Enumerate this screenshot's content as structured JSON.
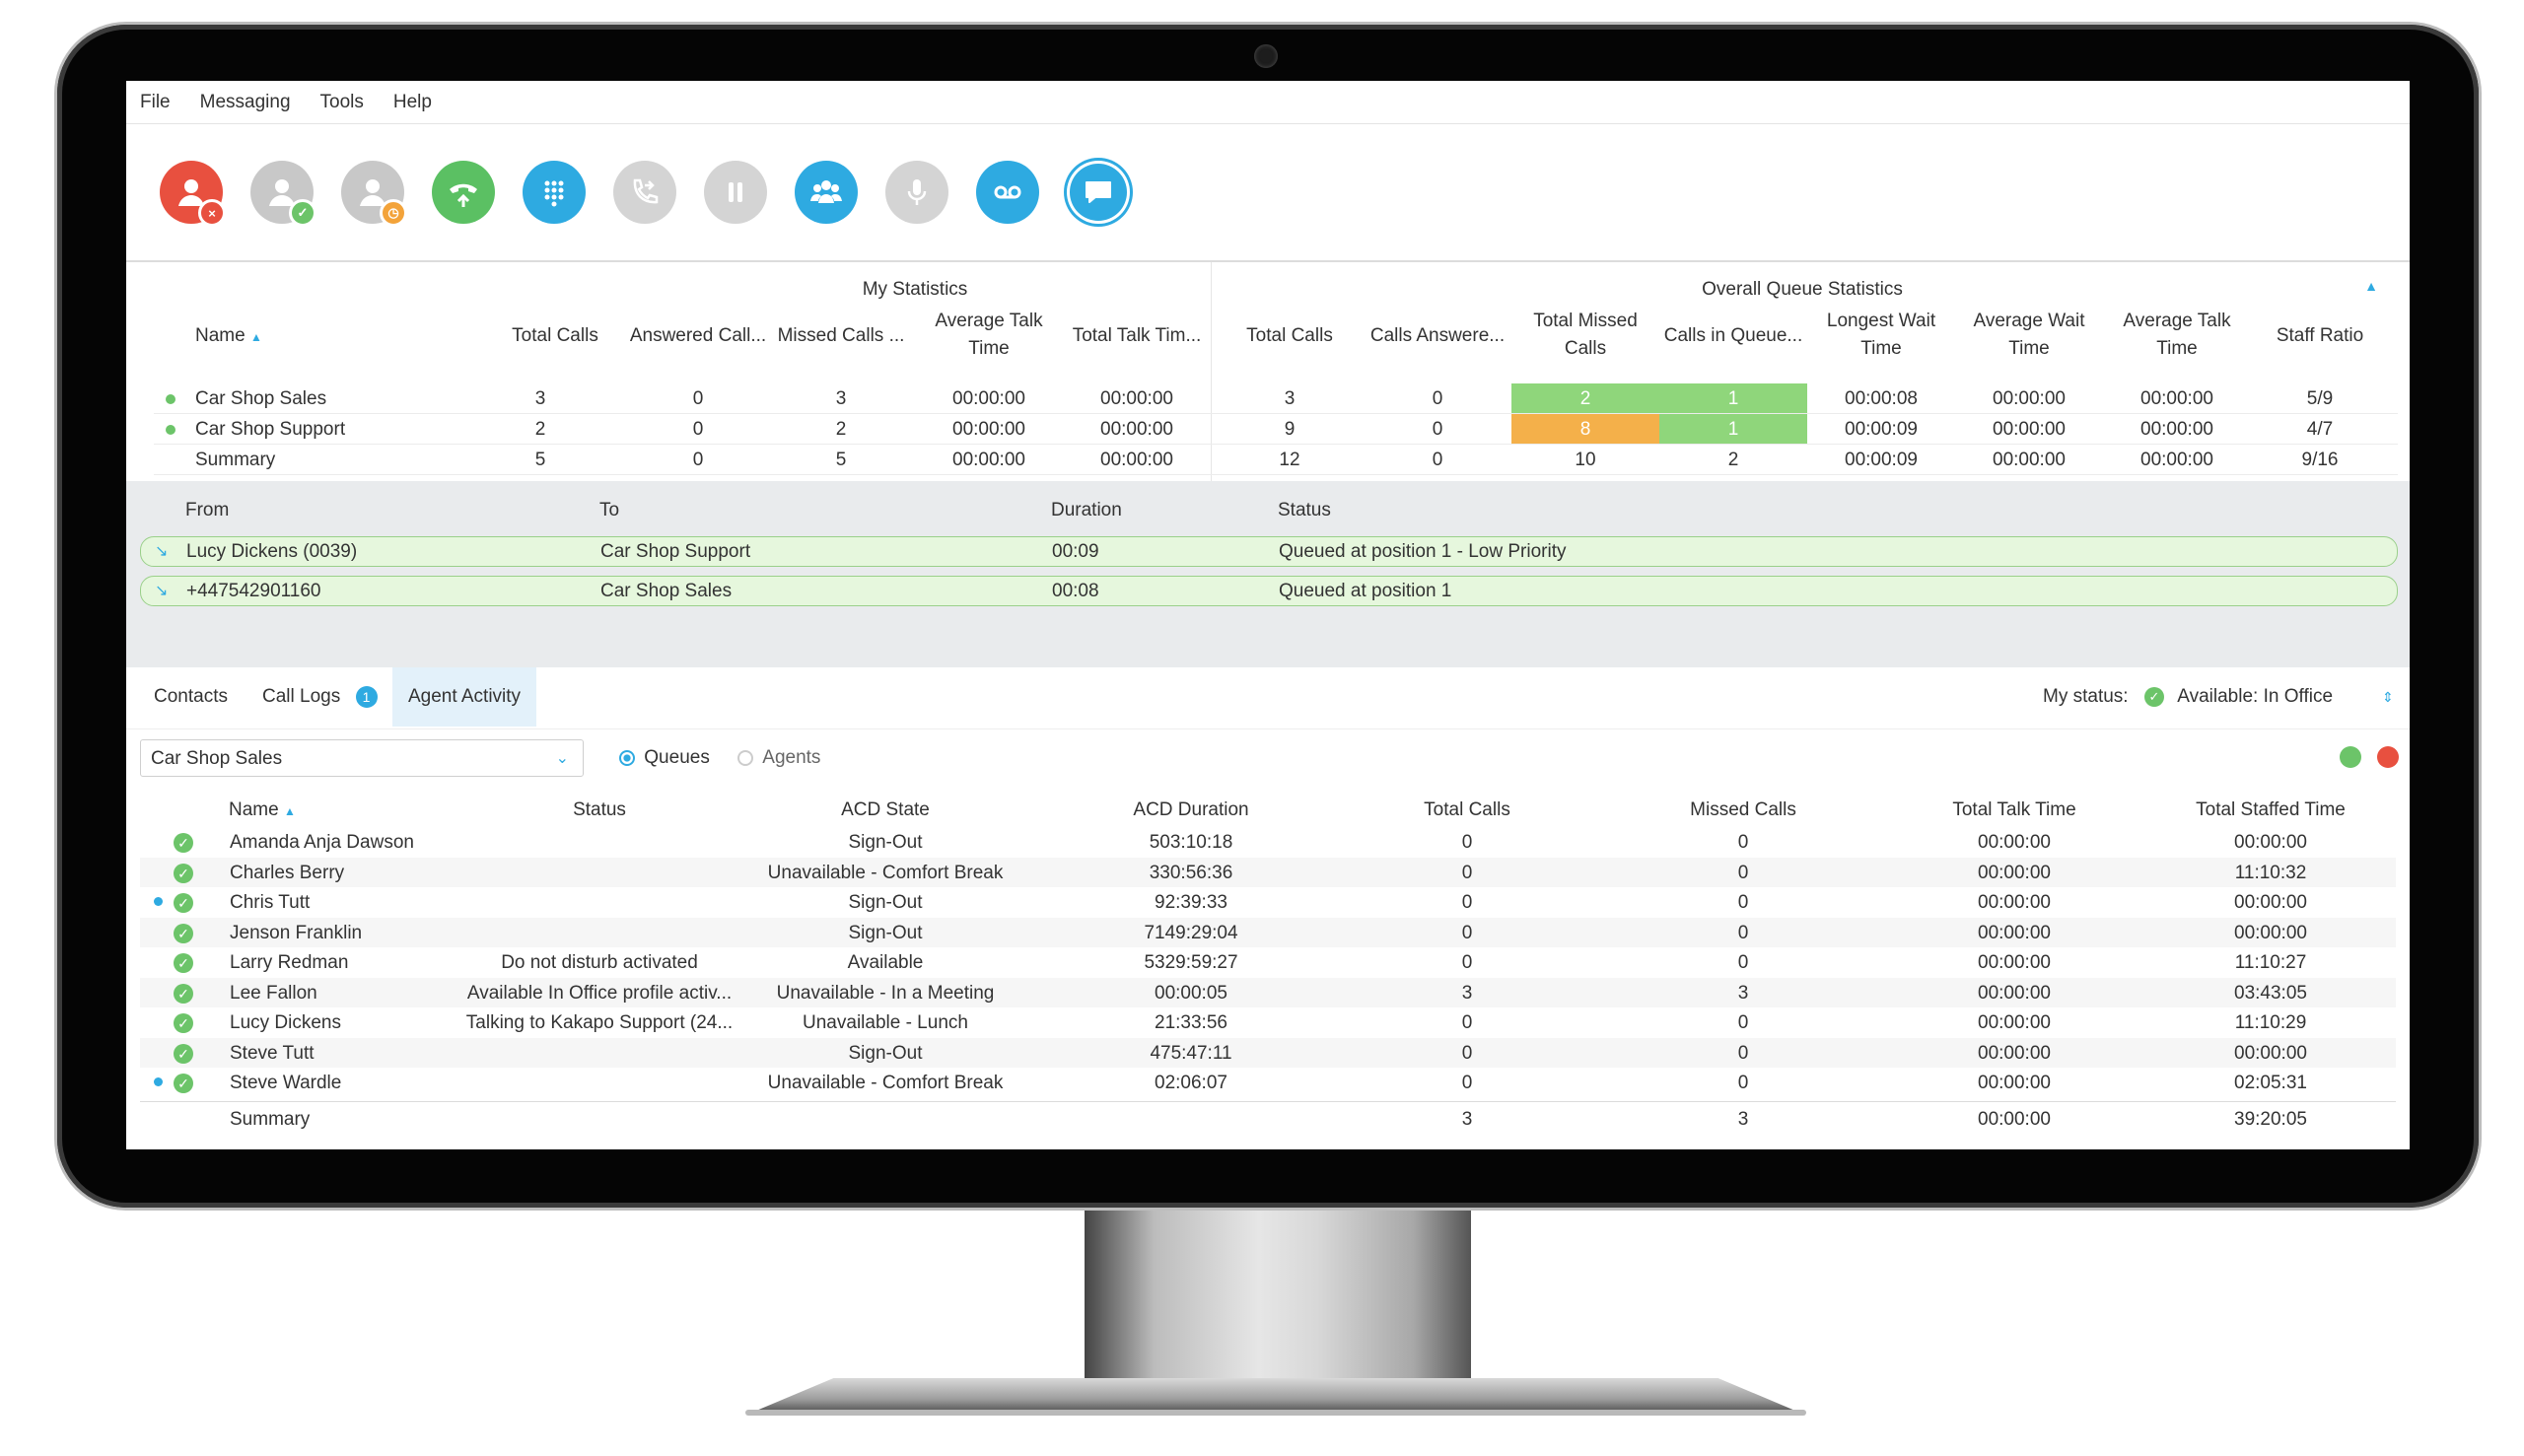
{
  "menu": [
    "File",
    "Messaging",
    "Tools",
    "Help"
  ],
  "toolbar": [
    {
      "icon": "user-reject-icon",
      "color": "#e8503f",
      "badge": "×",
      "badge_color": "#e8503f"
    },
    {
      "icon": "user-available-icon",
      "color": "#c8c8c8",
      "badge": "✓",
      "badge_color": "#6cc469"
    },
    {
      "icon": "user-away-icon",
      "color": "#c8c8c8",
      "badge": "◷",
      "badge_color": "#f3a33a"
    },
    {
      "icon": "answer-call-icon",
      "color": "#5bc063"
    },
    {
      "icon": "dialpad-icon",
      "color": "#2eaae1"
    },
    {
      "icon": "transfer-call-icon",
      "color": "#d4d4d4"
    },
    {
      "icon": "pause-icon",
      "color": "#d4d4d4"
    },
    {
      "icon": "conference-icon",
      "color": "#2eaae1"
    },
    {
      "icon": "microphone-icon",
      "color": "#d4d4d4"
    },
    {
      "icon": "voicemail-icon",
      "color": "#2eaae1"
    },
    {
      "icon": "chat-icon",
      "color": "#2eaae1"
    }
  ],
  "stats": {
    "my_title": "My Statistics",
    "overall_title": "Overall Queue Statistics",
    "headers": {
      "name": "Name",
      "my_total_calls": "Total Calls",
      "answered": "Answered Call...",
      "missed": "Missed Calls ...",
      "avg_talk": "Average Talk Time",
      "total_talk": "Total Talk Tim...",
      "q_total_calls": "Total Calls",
      "q_answered": "Calls Answere...",
      "q_missed": "Total Missed Calls",
      "q_in_queue": "Calls in Queue...",
      "q_longest_wait": "Longest Wait Time",
      "q_avg_wait": "Average Wait Time",
      "q_avg_talk": "Average Talk Time",
      "q_staff_ratio": "Staff Ratio"
    },
    "rows": [
      {
        "name": "Car Shop Sales",
        "cells": [
          "3",
          "0",
          "3",
          "00:00:00",
          "00:00:00",
          "3",
          "0",
          "2",
          "1",
          "00:00:08",
          "00:00:00",
          "00:00:00",
          "5/9"
        ]
      },
      {
        "name": "Car Shop Support",
        "cells": [
          "2",
          "0",
          "2",
          "00:00:00",
          "00:00:00",
          "9",
          "0",
          "8",
          "1",
          "00:00:09",
          "00:00:00",
          "00:00:00",
          "4/7"
        ]
      },
      {
        "name": "Summary",
        "cells": [
          "5",
          "0",
          "5",
          "00:00:00",
          "00:00:00",
          "12",
          "0",
          "10",
          "2",
          "00:00:09",
          "00:00:00",
          "00:00:00",
          "9/16"
        ]
      }
    ]
  },
  "queue": {
    "headers": {
      "from": "From",
      "to": "To",
      "duration": "Duration",
      "status": "Status"
    },
    "calls": [
      {
        "from": "Lucy Dickens (0039)",
        "to": "Car Shop Support",
        "duration": "00:09",
        "status": "Queued at position 1 - Low Priority"
      },
      {
        "from": "+447542901160",
        "to": "Car Shop Sales",
        "duration": "00:08",
        "status": "Queued at position 1"
      }
    ]
  },
  "tabs": {
    "contacts": "Contacts",
    "call_logs": "Call Logs",
    "call_logs_badge": "1",
    "agent_activity": "Agent Activity",
    "my_status_label": "My status:",
    "my_status_value": "Available: In Office"
  },
  "filter": {
    "queue_select": "Car Shop Sales",
    "radio_queues": "Queues",
    "radio_agents": "Agents"
  },
  "agents": {
    "headers": {
      "name": "Name",
      "status": "Status",
      "acd_state": "ACD State",
      "acd_duration": "ACD Duration",
      "total_calls": "Total Calls",
      "missed_calls": "Missed Calls",
      "total_talk": "Total Talk Time",
      "total_staffed": "Total Staffed Time"
    },
    "rows": [
      {
        "name": "Amanda Anja Dawson",
        "status": "",
        "acd_state": "Sign-Out",
        "acd_duration": "503:10:18",
        "total_calls": "0",
        "missed_calls": "0",
        "total_talk": "00:00:00",
        "total_staffed": "00:00:00",
        "blue_dot": false
      },
      {
        "name": "Charles Berry",
        "status": "",
        "acd_state": "Unavailable - Comfort Break",
        "acd_duration": "330:56:36",
        "total_calls": "0",
        "missed_calls": "0",
        "total_talk": "00:00:00",
        "total_staffed": "11:10:32",
        "blue_dot": false
      },
      {
        "name": "Chris Tutt",
        "status": "",
        "acd_state": "Sign-Out",
        "acd_duration": "92:39:33",
        "total_calls": "0",
        "missed_calls": "0",
        "total_talk": "00:00:00",
        "total_staffed": "00:00:00",
        "blue_dot": true
      },
      {
        "name": "Jenson Franklin",
        "status": "",
        "acd_state": "Sign-Out",
        "acd_duration": "7149:29:04",
        "total_calls": "0",
        "missed_calls": "0",
        "total_talk": "00:00:00",
        "total_staffed": "00:00:00",
        "blue_dot": false
      },
      {
        "name": "Larry Redman",
        "status": "Do not disturb activated",
        "acd_state": "Available",
        "acd_duration": "5329:59:27",
        "total_calls": "0",
        "missed_calls": "0",
        "total_talk": "00:00:00",
        "total_staffed": "11:10:27",
        "blue_dot": false
      },
      {
        "name": "Lee Fallon",
        "status": "Available In Office profile activ...",
        "acd_state": "Unavailable - In a Meeting",
        "acd_duration": "00:00:05",
        "total_calls": "3",
        "missed_calls": "3",
        "total_talk": "00:00:00",
        "total_staffed": "03:43:05",
        "blue_dot": false
      },
      {
        "name": "Lucy Dickens",
        "status": "Talking to Kakapo Support (24...",
        "acd_state": "Unavailable - Lunch",
        "acd_duration": "21:33:56",
        "total_calls": "0",
        "missed_calls": "0",
        "total_talk": "00:00:00",
        "total_staffed": "11:10:29",
        "blue_dot": false
      },
      {
        "name": "Steve Tutt",
        "status": "",
        "acd_state": "Sign-Out",
        "acd_duration": "475:47:11",
        "total_calls": "0",
        "missed_calls": "0",
        "total_talk": "00:00:00",
        "total_staffed": "00:00:00",
        "blue_dot": false
      },
      {
        "name": "Steve Wardle",
        "status": "",
        "acd_state": "Unavailable - Comfort Break",
        "acd_duration": "02:06:07",
        "total_calls": "0",
        "missed_calls": "0",
        "total_talk": "00:00:00",
        "total_staffed": "02:05:31",
        "blue_dot": true
      }
    ],
    "summary": {
      "name": "Summary",
      "total_calls": "3",
      "missed_calls": "3",
      "total_talk": "00:00:00",
      "total_staffed": "39:20:05"
    }
  },
  "colors": {
    "accent": "#2eaae1",
    "green": "#6cc469",
    "orange": "#f4b04a",
    "missed_green": "#8fd67b",
    "red": "#e8503f"
  }
}
